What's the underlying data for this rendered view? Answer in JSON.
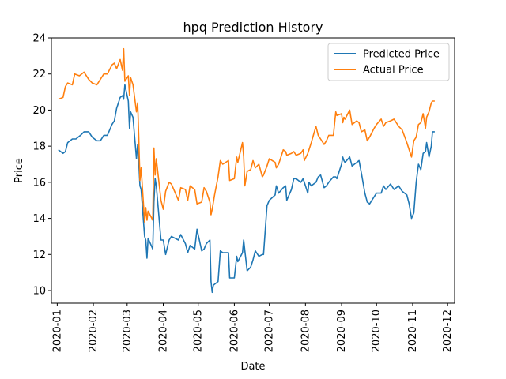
{
  "chart_data": {
    "type": "line",
    "title": "hpq Prediction History",
    "xlabel": "Date",
    "ylabel": "Price",
    "xlim": [
      "2019-12-27",
      "2020-12-07"
    ],
    "ylim": [
      9.3,
      24
    ],
    "grid": false,
    "legend_position": "top-right",
    "x_ticks": [
      "2020-01",
      "2020-02",
      "2020-03",
      "2020-04",
      "2020-05",
      "2020-06",
      "2020-07",
      "2020-08",
      "2020-09",
      "2020-10",
      "2020-11",
      "2020-12"
    ],
    "y_ticks": [
      10,
      12,
      14,
      16,
      18,
      20,
      22,
      24
    ],
    "series": [
      {
        "name": "Predicted Price",
        "color": "#1f77b4",
        "points": [
          [
            "2020-01-02",
            17.8
          ],
          [
            "2020-01-06",
            17.6
          ],
          [
            "2020-01-08",
            17.7
          ],
          [
            "2020-01-10",
            18.2
          ],
          [
            "2020-01-14",
            18.4
          ],
          [
            "2020-01-17",
            18.4
          ],
          [
            "2020-01-21",
            18.6
          ],
          [
            "2020-01-24",
            18.8
          ],
          [
            "2020-01-28",
            18.8
          ],
          [
            "2020-01-31",
            18.5
          ],
          [
            "2020-02-04",
            18.3
          ],
          [
            "2020-02-07",
            18.3
          ],
          [
            "2020-02-10",
            18.6
          ],
          [
            "2020-02-13",
            18.6
          ],
          [
            "2020-02-17",
            19.2
          ],
          [
            "2020-02-19",
            19.4
          ],
          [
            "2020-02-21",
            20.1
          ],
          [
            "2020-02-24",
            20.7
          ],
          [
            "2020-02-26",
            20.8
          ],
          [
            "2020-02-27",
            20.6
          ],
          [
            "2020-02-28",
            21.4
          ],
          [
            "2020-03-02",
            20.5
          ],
          [
            "2020-03-03",
            19.0
          ],
          [
            "2020-03-04",
            19.9
          ],
          [
            "2020-03-06",
            19.6
          ],
          [
            "2020-03-09",
            17.3
          ],
          [
            "2020-03-10",
            18.1
          ],
          [
            "2020-03-11",
            17.1
          ],
          [
            "2020-03-12",
            15.8
          ],
          [
            "2020-03-13",
            15.6
          ],
          [
            "2020-03-16",
            13.0
          ],
          [
            "2020-03-17",
            12.8
          ],
          [
            "2020-03-18",
            11.8
          ],
          [
            "2020-03-19",
            12.9
          ],
          [
            "2020-03-23",
            12.3
          ],
          [
            "2020-03-24",
            14.9
          ],
          [
            "2020-03-25",
            16.2
          ],
          [
            "2020-03-26",
            15.8
          ],
          [
            "2020-03-30",
            12.8
          ],
          [
            "2020-04-01",
            12.8
          ],
          [
            "2020-04-03",
            12.0
          ],
          [
            "2020-04-06",
            12.8
          ],
          [
            "2020-04-08",
            13.0
          ],
          [
            "2020-04-14",
            12.8
          ],
          [
            "2020-04-16",
            13.1
          ],
          [
            "2020-04-20",
            12.6
          ],
          [
            "2020-04-22",
            12.1
          ],
          [
            "2020-04-24",
            12.5
          ],
          [
            "2020-04-28",
            12.3
          ],
          [
            "2020-04-30",
            13.4
          ],
          [
            "2020-05-04",
            12.2
          ],
          [
            "2020-05-06",
            12.3
          ],
          [
            "2020-05-08",
            12.6
          ],
          [
            "2020-05-11",
            12.8
          ],
          [
            "2020-05-12",
            10.5
          ],
          [
            "2020-05-13",
            9.9
          ],
          [
            "2020-05-14",
            10.3
          ],
          [
            "2020-05-18",
            10.5
          ],
          [
            "2020-05-20",
            12.2
          ],
          [
            "2020-05-22",
            12.1
          ],
          [
            "2020-05-27",
            12.1
          ],
          [
            "2020-05-28",
            10.7
          ],
          [
            "2020-06-01",
            10.7
          ],
          [
            "2020-06-03",
            11.9
          ],
          [
            "2020-06-04",
            11.6
          ],
          [
            "2020-06-08",
            12.1
          ],
          [
            "2020-06-09",
            12.8
          ],
          [
            "2020-06-10",
            12.2
          ],
          [
            "2020-06-12",
            11.1
          ],
          [
            "2020-06-15",
            11.3
          ],
          [
            "2020-06-17",
            11.7
          ],
          [
            "2020-06-19",
            12.2
          ],
          [
            "2020-06-22",
            11.9
          ],
          [
            "2020-06-25",
            12.0
          ],
          [
            "2020-06-26",
            12.0
          ],
          [
            "2020-06-29",
            14.7
          ],
          [
            "2020-07-01",
            15.0
          ],
          [
            "2020-07-06",
            15.3
          ],
          [
            "2020-07-07",
            15.8
          ],
          [
            "2020-07-09",
            15.4
          ],
          [
            "2020-07-13",
            15.7
          ],
          [
            "2020-07-15",
            15.8
          ],
          [
            "2020-07-16",
            15.0
          ],
          [
            "2020-07-20",
            15.6
          ],
          [
            "2020-07-22",
            16.2
          ],
          [
            "2020-07-24",
            16.2
          ],
          [
            "2020-07-28",
            16.0
          ],
          [
            "2020-07-30",
            16.2
          ],
          [
            "2020-07-31",
            16.0
          ],
          [
            "2020-08-03",
            15.4
          ],
          [
            "2020-08-04",
            16.0
          ],
          [
            "2020-08-06",
            15.8
          ],
          [
            "2020-08-10",
            16.0
          ],
          [
            "2020-08-12",
            16.3
          ],
          [
            "2020-08-14",
            16.4
          ],
          [
            "2020-08-17",
            15.7
          ],
          [
            "2020-08-19",
            15.8
          ],
          [
            "2020-08-21",
            16.0
          ],
          [
            "2020-08-25",
            16.3
          ],
          [
            "2020-08-27",
            16.3
          ],
          [
            "2020-08-28",
            16.2
          ],
          [
            "2020-09-01",
            17.0
          ],
          [
            "2020-09-02",
            17.4
          ],
          [
            "2020-09-03",
            17.2
          ],
          [
            "2020-09-04",
            17.1
          ],
          [
            "2020-09-08",
            17.4
          ],
          [
            "2020-09-10",
            16.9
          ],
          [
            "2020-09-14",
            17.1
          ],
          [
            "2020-09-16",
            17.2
          ],
          [
            "2020-09-18",
            16.5
          ],
          [
            "2020-09-21",
            15.4
          ],
          [
            "2020-09-23",
            14.9
          ],
          [
            "2020-09-25",
            14.8
          ],
          [
            "2020-09-29",
            15.2
          ],
          [
            "2020-10-01",
            15.4
          ],
          [
            "2020-10-05",
            15.4
          ],
          [
            "2020-10-07",
            15.8
          ],
          [
            "2020-10-09",
            15.6
          ],
          [
            "2020-10-13",
            15.9
          ],
          [
            "2020-10-16",
            15.6
          ],
          [
            "2020-10-20",
            15.8
          ],
          [
            "2020-10-23",
            15.5
          ],
          [
            "2020-10-27",
            15.3
          ],
          [
            "2020-10-29",
            14.8
          ],
          [
            "2020-10-31",
            14.0
          ],
          [
            "2020-11-02",
            14.3
          ],
          [
            "2020-11-04",
            16.0
          ],
          [
            "2020-11-06",
            17.0
          ],
          [
            "2020-11-08",
            16.7
          ],
          [
            "2020-11-10",
            17.6
          ],
          [
            "2020-11-12",
            17.7
          ],
          [
            "2020-11-13",
            18.2
          ],
          [
            "2020-11-15",
            17.4
          ],
          [
            "2020-11-17",
            18.0
          ],
          [
            "2020-11-18",
            18.8
          ],
          [
            "2020-11-20",
            18.8
          ]
        ]
      },
      {
        "name": "Actual Price",
        "color": "#ff7f0e",
        "points": [
          [
            "2020-01-02",
            20.6
          ],
          [
            "2020-01-06",
            20.7
          ],
          [
            "2020-01-08",
            21.3
          ],
          [
            "2020-01-10",
            21.5
          ],
          [
            "2020-01-14",
            21.4
          ],
          [
            "2020-01-16",
            22.0
          ],
          [
            "2020-01-20",
            21.9
          ],
          [
            "2020-01-24",
            22.1
          ],
          [
            "2020-01-28",
            21.7
          ],
          [
            "2020-01-31",
            21.5
          ],
          [
            "2020-02-04",
            21.4
          ],
          [
            "2020-02-07",
            21.7
          ],
          [
            "2020-02-10",
            22.0
          ],
          [
            "2020-02-13",
            22.0
          ],
          [
            "2020-02-17",
            22.5
          ],
          [
            "2020-02-19",
            22.6
          ],
          [
            "2020-02-21",
            22.3
          ],
          [
            "2020-02-24",
            22.8
          ],
          [
            "2020-02-26",
            22.2
          ],
          [
            "2020-02-27",
            23.4
          ],
          [
            "2020-02-28",
            21.6
          ],
          [
            "2020-03-02",
            21.9
          ],
          [
            "2020-03-03",
            20.8
          ],
          [
            "2020-03-04",
            21.8
          ],
          [
            "2020-03-06",
            21.4
          ],
          [
            "2020-03-09",
            19.9
          ],
          [
            "2020-03-10",
            20.4
          ],
          [
            "2020-03-11",
            18.5
          ],
          [
            "2020-03-12",
            16.1
          ],
          [
            "2020-03-13",
            16.8
          ],
          [
            "2020-03-16",
            13.8
          ],
          [
            "2020-03-17",
            14.6
          ],
          [
            "2020-03-18",
            13.9
          ],
          [
            "2020-03-19",
            14.4
          ],
          [
            "2020-03-23",
            13.9
          ],
          [
            "2020-03-24",
            17.9
          ],
          [
            "2020-03-25",
            16.4
          ],
          [
            "2020-03-26",
            17.3
          ],
          [
            "2020-03-30",
            15.0
          ],
          [
            "2020-04-01",
            14.5
          ],
          [
            "2020-04-03",
            15.5
          ],
          [
            "2020-04-06",
            16.0
          ],
          [
            "2020-04-08",
            15.9
          ],
          [
            "2020-04-14",
            15.0
          ],
          [
            "2020-04-16",
            15.7
          ],
          [
            "2020-04-20",
            15.6
          ],
          [
            "2020-04-22",
            15.0
          ],
          [
            "2020-04-24",
            15.8
          ],
          [
            "2020-04-28",
            15.6
          ],
          [
            "2020-04-30",
            14.8
          ],
          [
            "2020-05-04",
            14.9
          ],
          [
            "2020-05-06",
            15.7
          ],
          [
            "2020-05-08",
            15.5
          ],
          [
            "2020-05-11",
            14.9
          ],
          [
            "2020-05-12",
            14.2
          ],
          [
            "2020-05-13",
            14.5
          ],
          [
            "2020-05-15",
            15.3
          ],
          [
            "2020-05-18",
            16.3
          ],
          [
            "2020-05-20",
            17.2
          ],
          [
            "2020-05-22",
            17.0
          ],
          [
            "2020-05-27",
            17.2
          ],
          [
            "2020-05-28",
            16.1
          ],
          [
            "2020-06-01",
            16.2
          ],
          [
            "2020-06-03",
            17.4
          ],
          [
            "2020-06-04",
            17.1
          ],
          [
            "2020-06-08",
            18.2
          ],
          [
            "2020-06-09",
            17.4
          ],
          [
            "2020-06-10",
            15.8
          ],
          [
            "2020-06-12",
            16.6
          ],
          [
            "2020-06-15",
            16.7
          ],
          [
            "2020-06-17",
            17.2
          ],
          [
            "2020-06-19",
            16.8
          ],
          [
            "2020-06-22",
            17.0
          ],
          [
            "2020-06-25",
            16.3
          ],
          [
            "2020-06-26",
            16.4
          ],
          [
            "2020-06-29",
            16.9
          ],
          [
            "2020-07-01",
            17.3
          ],
          [
            "2020-07-06",
            17.1
          ],
          [
            "2020-07-07",
            16.8
          ],
          [
            "2020-07-09",
            17.0
          ],
          [
            "2020-07-13",
            17.8
          ],
          [
            "2020-07-15",
            17.7
          ],
          [
            "2020-07-16",
            17.5
          ],
          [
            "2020-07-20",
            17.6
          ],
          [
            "2020-07-22",
            17.7
          ],
          [
            "2020-07-24",
            17.5
          ],
          [
            "2020-07-28",
            17.6
          ],
          [
            "2020-07-30",
            17.8
          ],
          [
            "2020-07-31",
            17.2
          ],
          [
            "2020-08-03",
            17.6
          ],
          [
            "2020-08-04",
            17.8
          ],
          [
            "2020-08-06",
            18.2
          ],
          [
            "2020-08-10",
            19.1
          ],
          [
            "2020-08-12",
            18.6
          ],
          [
            "2020-08-14",
            18.4
          ],
          [
            "2020-08-17",
            18.1
          ],
          [
            "2020-08-19",
            18.3
          ],
          [
            "2020-08-21",
            18.6
          ],
          [
            "2020-08-25",
            18.6
          ],
          [
            "2020-08-27",
            19.9
          ],
          [
            "2020-08-28",
            19.7
          ],
          [
            "2020-09-01",
            19.8
          ],
          [
            "2020-09-02",
            19.3
          ],
          [
            "2020-09-03",
            19.6
          ],
          [
            "2020-09-04",
            19.5
          ],
          [
            "2020-09-08",
            20.0
          ],
          [
            "2020-09-10",
            19.2
          ],
          [
            "2020-09-14",
            19.4
          ],
          [
            "2020-09-16",
            19.3
          ],
          [
            "2020-09-18",
            18.8
          ],
          [
            "2020-09-21",
            18.9
          ],
          [
            "2020-09-23",
            18.3
          ],
          [
            "2020-09-25",
            18.5
          ],
          [
            "2020-09-29",
            19.0
          ],
          [
            "2020-10-01",
            19.2
          ],
          [
            "2020-10-05",
            19.5
          ],
          [
            "2020-10-07",
            19.1
          ],
          [
            "2020-10-09",
            19.3
          ],
          [
            "2020-10-13",
            19.4
          ],
          [
            "2020-10-16",
            19.5
          ],
          [
            "2020-10-20",
            19.1
          ],
          [
            "2020-10-23",
            18.9
          ],
          [
            "2020-10-27",
            18.2
          ],
          [
            "2020-10-29",
            17.8
          ],
          [
            "2020-10-31",
            17.4
          ],
          [
            "2020-11-02",
            18.3
          ],
          [
            "2020-11-04",
            18.5
          ],
          [
            "2020-11-06",
            19.2
          ],
          [
            "2020-11-08",
            19.3
          ],
          [
            "2020-11-10",
            19.8
          ],
          [
            "2020-11-12",
            19.0
          ],
          [
            "2020-11-13",
            19.6
          ],
          [
            "2020-11-15",
            19.9
          ],
          [
            "2020-11-17",
            20.4
          ],
          [
            "2020-11-18",
            20.5
          ],
          [
            "2020-11-20",
            20.5
          ]
        ]
      }
    ]
  }
}
